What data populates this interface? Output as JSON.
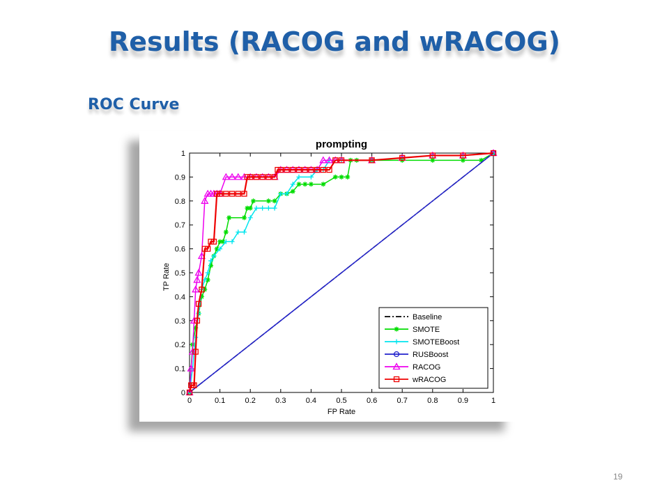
{
  "slide": {
    "title": "Results (RACOG and wRACOG)",
    "subtitle": "ROC Curve",
    "page_number": "19"
  },
  "chart_data": {
    "type": "line",
    "title": "prompting",
    "xlabel": "FP Rate",
    "ylabel": "TP Rate",
    "xlim": [
      0,
      1
    ],
    "ylim": [
      0,
      1
    ],
    "xticks": [
      "0",
      "0.1",
      "0.2",
      "0.3",
      "0.4",
      "0.5",
      "0.6",
      "0.7",
      "0.8",
      "0.9",
      "1"
    ],
    "yticks": [
      "0",
      "0.1",
      "0.2",
      "0.3",
      "0.4",
      "0.5",
      "0.6",
      "0.7",
      "0.8",
      "0.9",
      "1"
    ],
    "grid": false,
    "legend_position": "bottom-right",
    "series": [
      {
        "name": "Baseline",
        "color": "#000000",
        "style": "dashdot",
        "marker": "none",
        "x": [
          0,
          1
        ],
        "y": [
          0,
          1
        ]
      },
      {
        "name": "SMOTE",
        "color": "#00dd00",
        "style": "solid",
        "marker": "star",
        "x": [
          0,
          0.01,
          0.02,
          0.03,
          0.04,
          0.05,
          0.06,
          0.07,
          0.08,
          0.09,
          0.1,
          0.11,
          0.12,
          0.13,
          0.18,
          0.19,
          0.2,
          0.21,
          0.26,
          0.28,
          0.3,
          0.32,
          0.34,
          0.36,
          0.38,
          0.4,
          0.44,
          0.48,
          0.5,
          0.52,
          0.53,
          0.55,
          0.6,
          0.7,
          0.8,
          0.9,
          0.96,
          1
        ],
        "y": [
          0,
          0.2,
          0.27,
          0.33,
          0.4,
          0.43,
          0.47,
          0.53,
          0.57,
          0.6,
          0.63,
          0.63,
          0.67,
          0.73,
          0.73,
          0.77,
          0.77,
          0.8,
          0.8,
          0.8,
          0.83,
          0.83,
          0.84,
          0.87,
          0.87,
          0.87,
          0.87,
          0.9,
          0.9,
          0.9,
          0.97,
          0.97,
          0.97,
          0.97,
          0.97,
          0.97,
          0.97,
          1
        ]
      },
      {
        "name": "SMOTEBoost",
        "color": "#00e5ee",
        "style": "solid",
        "marker": "plus",
        "x": [
          0,
          0.01,
          0.02,
          0.03,
          0.04,
          0.05,
          0.06,
          0.07,
          0.08,
          0.1,
          0.12,
          0.14,
          0.16,
          0.18,
          0.2,
          0.22,
          0.24,
          0.26,
          0.28,
          0.3,
          0.32,
          0.34,
          0.36,
          0.4,
          0.42,
          0.44,
          0.46,
          0.5,
          0.6,
          0.7,
          0.8,
          0.9,
          1
        ],
        "y": [
          0,
          0.1,
          0.23,
          0.33,
          0.43,
          0.47,
          0.5,
          0.55,
          0.57,
          0.6,
          0.63,
          0.63,
          0.67,
          0.67,
          0.73,
          0.77,
          0.77,
          0.77,
          0.77,
          0.83,
          0.83,
          0.87,
          0.9,
          0.9,
          0.93,
          0.93,
          0.97,
          0.97,
          0.97,
          0.98,
          0.99,
          0.99,
          1
        ]
      },
      {
        "name": "RUSBoost",
        "color": "#2020cc",
        "style": "solid",
        "marker": "circle",
        "x": [
          0,
          1
        ],
        "y": [
          0,
          1
        ]
      },
      {
        "name": "RACOG",
        "color": "#ee00ee",
        "style": "solid",
        "marker": "triangle",
        "x": [
          0,
          0.005,
          0.01,
          0.015,
          0.02,
          0.025,
          0.03,
          0.04,
          0.05,
          0.06,
          0.07,
          0.08,
          0.09,
          0.1,
          0.12,
          0.14,
          0.16,
          0.18,
          0.2,
          0.22,
          0.24,
          0.26,
          0.28,
          0.3,
          0.32,
          0.34,
          0.36,
          0.38,
          0.4,
          0.42,
          0.44,
          0.46,
          0.48,
          0.5,
          0.6,
          0.7,
          0.8,
          0.9,
          1
        ],
        "y": [
          0,
          0.1,
          0.17,
          0.3,
          0.43,
          0.47,
          0.5,
          0.57,
          0.8,
          0.83,
          0.83,
          0.83,
          0.83,
          0.83,
          0.9,
          0.9,
          0.9,
          0.9,
          0.9,
          0.9,
          0.9,
          0.9,
          0.9,
          0.93,
          0.93,
          0.93,
          0.93,
          0.93,
          0.93,
          0.93,
          0.97,
          0.97,
          0.97,
          0.97,
          0.97,
          0.98,
          0.99,
          0.99,
          1
        ]
      },
      {
        "name": "wRACOG",
        "color": "#ee0000",
        "style": "solid",
        "marker": "square",
        "x": [
          0,
          0.005,
          0.01,
          0.015,
          0.02,
          0.025,
          0.03,
          0.04,
          0.05,
          0.06,
          0.07,
          0.08,
          0.09,
          0.1,
          0.12,
          0.14,
          0.16,
          0.18,
          0.19,
          0.2,
          0.22,
          0.24,
          0.26,
          0.28,
          0.29,
          0.3,
          0.32,
          0.34,
          0.36,
          0.38,
          0.4,
          0.42,
          0.44,
          0.46,
          0.48,
          0.5,
          0.6,
          0.7,
          0.8,
          0.9,
          1
        ],
        "y": [
          0,
          0.03,
          0.03,
          0.03,
          0.17,
          0.3,
          0.37,
          0.43,
          0.6,
          0.6,
          0.63,
          0.63,
          0.83,
          0.83,
          0.83,
          0.83,
          0.83,
          0.83,
          0.9,
          0.9,
          0.9,
          0.9,
          0.9,
          0.9,
          0.93,
          0.93,
          0.93,
          0.93,
          0.93,
          0.93,
          0.93,
          0.93,
          0.93,
          0.93,
          0.97,
          0.97,
          0.97,
          0.98,
          0.99,
          0.99,
          1
        ]
      }
    ]
  }
}
